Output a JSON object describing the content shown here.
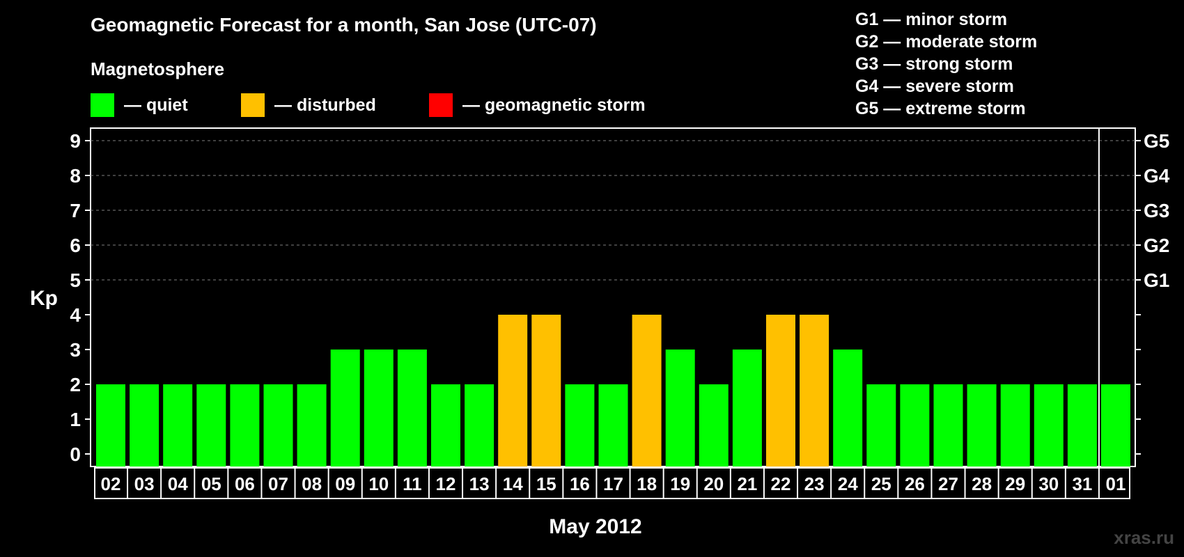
{
  "header": {
    "title": "Geomagnetic Forecast for a month, San Jose (UTC-07)",
    "subtitle": "Magnetosphere"
  },
  "legend": [
    {
      "label": "— quiet",
      "color": "#00ff00"
    },
    {
      "label": "— disturbed",
      "color": "#ffc000"
    },
    {
      "label": "— geomagnetic storm",
      "color": "#ff0000"
    }
  ],
  "storm_levels": [
    {
      "code": "G1",
      "text": "G1 — minor storm",
      "kp": 5
    },
    {
      "code": "G2",
      "text": "G2 — moderate storm",
      "kp": 6
    },
    {
      "code": "G3",
      "text": "G3 — strong storm",
      "kp": 7
    },
    {
      "code": "G4",
      "text": "G4 — severe storm",
      "kp": 8
    },
    {
      "code": "G5",
      "text": "G5 — extreme storm",
      "kp": 9
    }
  ],
  "colors": {
    "background": "#000000",
    "quiet": "#00ff00",
    "disturbed": "#ffc000",
    "storm": "#ff0000",
    "axis": "#ffffff",
    "grid": "#808080"
  },
  "watermark": "xras.ru",
  "chart_data": {
    "type": "bar",
    "xlabel": "May 2012",
    "ylabel": "Kp",
    "ylim": [
      0,
      9
    ],
    "yticks": [
      0,
      1,
      2,
      3,
      4,
      5,
      6,
      7,
      8,
      9
    ],
    "grid": "dashed horizontal at Kp 5-9",
    "month_boundary_after": "31",
    "categories": [
      "02",
      "03",
      "04",
      "05",
      "06",
      "07",
      "08",
      "09",
      "10",
      "11",
      "12",
      "13",
      "14",
      "15",
      "16",
      "17",
      "18",
      "19",
      "20",
      "21",
      "22",
      "23",
      "24",
      "25",
      "26",
      "27",
      "28",
      "29",
      "30",
      "31",
      "01"
    ],
    "values": [
      2,
      2,
      2,
      2,
      2,
      2,
      2,
      3,
      3,
      3,
      2,
      2,
      4,
      4,
      2,
      2,
      4,
      3,
      2,
      3,
      4,
      4,
      3,
      2,
      2,
      2,
      2,
      2,
      2,
      2,
      2
    ],
    "levels": [
      "quiet",
      "quiet",
      "quiet",
      "quiet",
      "quiet",
      "quiet",
      "quiet",
      "quiet",
      "quiet",
      "quiet",
      "quiet",
      "quiet",
      "disturbed",
      "disturbed",
      "quiet",
      "quiet",
      "disturbed",
      "quiet",
      "quiet",
      "quiet",
      "disturbed",
      "disturbed",
      "quiet",
      "quiet",
      "quiet",
      "quiet",
      "quiet",
      "quiet",
      "quiet",
      "quiet",
      "quiet"
    ]
  }
}
